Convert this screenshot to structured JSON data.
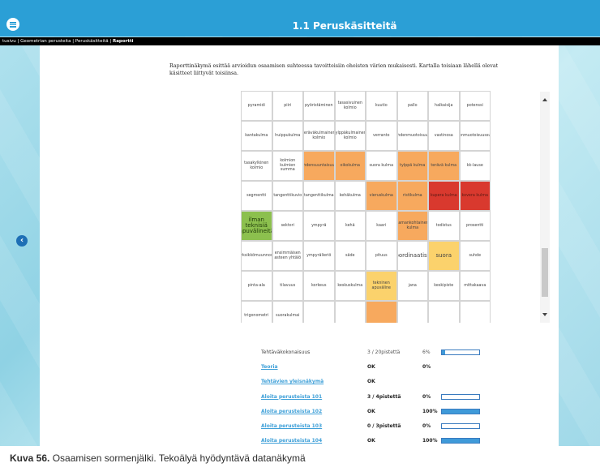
{
  "header": {
    "title": "1.1 Peruskäsitteitä"
  },
  "breadcrumb": {
    "items": [
      "tusivu",
      "Geometrian perusteita",
      "Peruskäsitteitä",
      "Raportti"
    ]
  },
  "intro_text": "Raporttinäkymä esittää arvioidun osaamisen suhteessa tavoitteisiin oheisten värien mukaisesti. Kartalla toisiaan lähellä olevat käsitteet liittyvät toisiinsa.",
  "colors": {
    "orange": "#f7a95e",
    "red": "#d9392e",
    "green": "#8cc04e",
    "yellow": "#fbd26c",
    "header": "#2b9fd6"
  },
  "concept_map": {
    "rows": [
      [
        {
          "t": "pyramidi",
          "c": ""
        },
        {
          "t": "piiri",
          "c": ""
        },
        {
          "t": "pyöristäminen",
          "c": ""
        },
        {
          "t": "tasasivuinen kolmio",
          "c": ""
        },
        {
          "t": "kuutio",
          "c": ""
        },
        {
          "t": "pallo",
          "c": ""
        },
        {
          "t": "halkaisija",
          "c": ""
        },
        {
          "t": "potenssi",
          "c": ""
        }
      ],
      [
        {
          "t": "kantakulma",
          "c": ""
        },
        {
          "t": "huippukulma",
          "c": ""
        },
        {
          "t": "teräväkulmainen kolmio",
          "c": ""
        },
        {
          "t": "tylppäkulmainen kolmio",
          "c": ""
        },
        {
          "t": "verranto",
          "c": ""
        },
        {
          "t": "yhdenmuotoisuus",
          "c": ""
        },
        {
          "t": "vastinosa",
          "c": ""
        },
        {
          "t": "yhdenmuotoisuussuhde",
          "c": ""
        }
      ],
      [
        {
          "t": "tasakylkinen kolmio",
          "c": ""
        },
        {
          "t": "kolmion kulmien summa",
          "c": ""
        },
        {
          "t": "yhdensuuntaisuus",
          "c": "orange"
        },
        {
          "t": "oikokulma",
          "c": "orange"
        },
        {
          "t": "suora kulma",
          "c": ""
        },
        {
          "t": "tylppä kulma",
          "c": "orange"
        },
        {
          "t": "terävä kulma",
          "c": "orange"
        },
        {
          "t": "kk-lause",
          "c": ""
        }
      ],
      [
        {
          "t": "segmentti",
          "c": ""
        },
        {
          "t": "tangenttikuvio",
          "c": ""
        },
        {
          "t": "tangenttikulma",
          "c": ""
        },
        {
          "t": "kehäkulma",
          "c": ""
        },
        {
          "t": "vieruskulma",
          "c": "orange"
        },
        {
          "t": "ristikulma",
          "c": "orange"
        },
        {
          "t": "kupera kulma",
          "c": "red"
        },
        {
          "t": "kovera kulma",
          "c": "red"
        }
      ],
      [
        {
          "t": "ilman teknisiä apuvälineitä",
          "c": "green"
        },
        {
          "t": "sektori",
          "c": ""
        },
        {
          "t": "ympyrä",
          "c": ""
        },
        {
          "t": "kehä",
          "c": ""
        },
        {
          "t": "kaari",
          "c": ""
        },
        {
          "t": "samankohtainen kulma",
          "c": "orange"
        },
        {
          "t": "todistus",
          "c": ""
        },
        {
          "t": "prosentti",
          "c": ""
        }
      ],
      [
        {
          "t": "yksikkömuunnos",
          "c": ""
        },
        {
          "t": "ensimmäisen asteen yhtälö",
          "c": ""
        },
        {
          "t": "ympyrälieriö",
          "c": ""
        },
        {
          "t": "säde",
          "c": ""
        },
        {
          "t": "pituus",
          "c": ""
        },
        {
          "t": "koordinaatisto",
          "c": "big"
        },
        {
          "t": "suora",
          "c": "yellow big"
        },
        {
          "t": "suhde",
          "c": ""
        }
      ],
      [
        {
          "t": "pinta-ala",
          "c": ""
        },
        {
          "t": "tilavuus",
          "c": ""
        },
        {
          "t": "korkeus",
          "c": ""
        },
        {
          "t": "keskuskulma",
          "c": ""
        },
        {
          "t": "tekninen apuväline",
          "c": "yellow"
        },
        {
          "t": "jana",
          "c": ""
        },
        {
          "t": "keskipiste",
          "c": ""
        },
        {
          "t": "mittakaava",
          "c": ""
        }
      ],
      [
        {
          "t": "trigonometri",
          "c": ""
        },
        {
          "t": "suorakulmai",
          "c": ""
        },
        {
          "t": "",
          "c": ""
        },
        {
          "t": "",
          "c": ""
        },
        {
          "t": "",
          "c": "orange"
        },
        {
          "t": "",
          "c": ""
        },
        {
          "t": "",
          "c": ""
        },
        {
          "t": "",
          "c": ""
        }
      ]
    ]
  },
  "summary": [
    {
      "label": "Tehtäväkokonaisuus",
      "link": false,
      "score": "3 / 20pistettä",
      "pct": "6%",
      "fill": 0.06,
      "bold": false
    },
    {
      "label": "Teoria",
      "link": true,
      "score": "OK",
      "pct": "0%",
      "fill": null,
      "bold": true
    },
    {
      "label": "Tehtävien yleisnäkymä",
      "link": true,
      "score": "OK",
      "pct": "",
      "fill": null,
      "bold": true
    },
    {
      "label": "Aloita perusteista 101",
      "link": true,
      "score": "3 / 4pistettä",
      "pct": "0%",
      "fill": 0.0,
      "bold": true
    },
    {
      "label": "Aloita perusteista 102",
      "link": true,
      "score": "OK",
      "pct": "100%",
      "fill": 1.0,
      "bold": true
    },
    {
      "label": "Aloita perusteista 103",
      "link": true,
      "score": "0 / 3pistettä",
      "pct": "0%",
      "fill": 0.0,
      "bold": true
    },
    {
      "label": "Aloita perusteista 104",
      "link": true,
      "score": "OK",
      "pct": "100%",
      "fill": 1.0,
      "bold": true
    }
  ],
  "caption": {
    "label": "Kuva 56.",
    "text": " Osaamisen sormenjälki. Tekoälyä hyödyntävä datanäkymä"
  }
}
